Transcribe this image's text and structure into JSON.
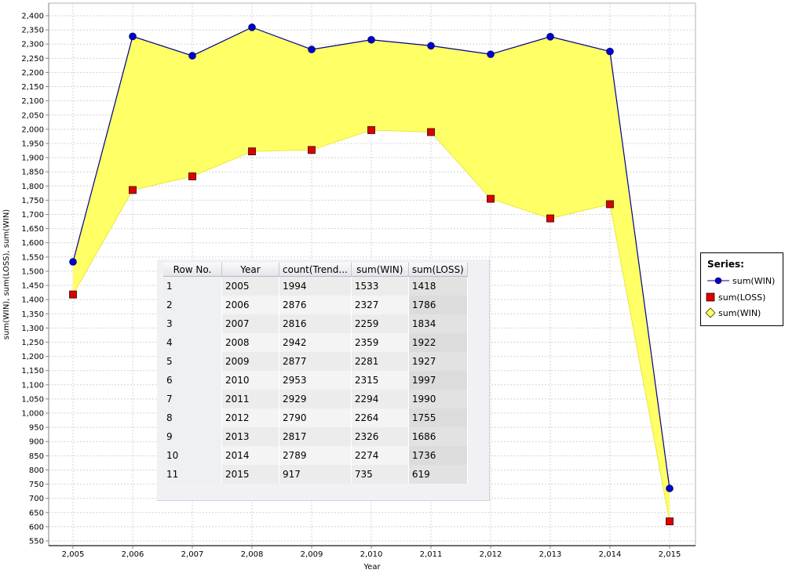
{
  "chart_data": {
    "type": "area",
    "xlabel": "Year",
    "ylabel": "sum(WIN), sum(LOSS), sum(WIN)",
    "x": [
      2005,
      2006,
      2007,
      2008,
      2009,
      2010,
      2011,
      2012,
      2013,
      2014,
      2015
    ],
    "x_tick_labels": [
      "2,005",
      "2,006",
      "2,007",
      "2,008",
      "2,009",
      "2,010",
      "2,011",
      "2,012",
      "2,013",
      "2,014",
      "2,015"
    ],
    "ylim": [
      550,
      2400
    ],
    "y_tick_step": 50,
    "grid": true,
    "series": [
      {
        "name": "sum(WIN)",
        "marker": "circle",
        "color": "#0000cc",
        "line_color": "#00008b",
        "values": [
          1533,
          2327,
          2259,
          2359,
          2281,
          2315,
          2294,
          2264,
          2326,
          2274,
          735
        ]
      },
      {
        "name": "sum(LOSS)",
        "marker": "square",
        "color": "#dd0000",
        "values": [
          1418,
          1786,
          1834,
          1922,
          1927,
          1997,
          1990,
          1755,
          1686,
          1736,
          619
        ]
      },
      {
        "name": "sum(WIN)",
        "marker": "diamond",
        "color": "#ffff66",
        "values": [
          1533,
          2327,
          2259,
          2359,
          2281,
          2315,
          2294,
          2264,
          2326,
          2274,
          735
        ]
      }
    ],
    "fill_color": "#ffff66",
    "legend_placement": "right"
  },
  "legend": {
    "title": "Series:",
    "items": [
      {
        "label": "sum(WIN)",
        "marker": "circle-line"
      },
      {
        "label": "sum(LOSS)",
        "marker": "square"
      },
      {
        "label": "sum(WIN)",
        "marker": "diamond"
      }
    ]
  },
  "table": {
    "headers": [
      "Row No.",
      "Year",
      "count(Trend...",
      "sum(WIN)",
      "sum(LOSS)"
    ],
    "rows": [
      [
        "1",
        "2005",
        "1994",
        "1533",
        "1418"
      ],
      [
        "2",
        "2006",
        "2876",
        "2327",
        "1786"
      ],
      [
        "3",
        "2007",
        "2816",
        "2259",
        "1834"
      ],
      [
        "4",
        "2008",
        "2942",
        "2359",
        "1922"
      ],
      [
        "5",
        "2009",
        "2877",
        "2281",
        "1927"
      ],
      [
        "6",
        "2010",
        "2953",
        "2315",
        "1997"
      ],
      [
        "7",
        "2011",
        "2929",
        "2294",
        "1990"
      ],
      [
        "8",
        "2012",
        "2790",
        "2264",
        "1755"
      ],
      [
        "9",
        "2013",
        "2817",
        "2326",
        "1686"
      ],
      [
        "10",
        "2014",
        "2789",
        "2274",
        "1736"
      ],
      [
        "11",
        "2015",
        "917",
        "735",
        "619"
      ]
    ]
  }
}
